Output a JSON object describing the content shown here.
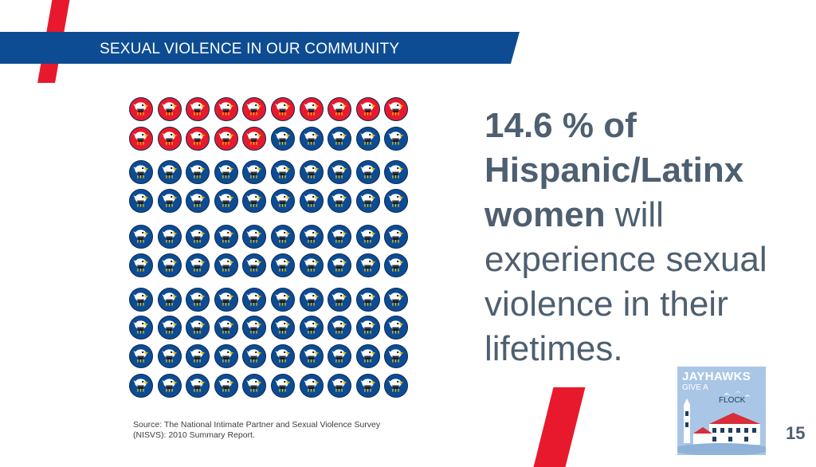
{
  "banner": {
    "title": "SEXUAL VIOLENCE IN OUR COMMUNITY"
  },
  "icon_array": {
    "rows": 10,
    "columns": 10,
    "total": 100,
    "highlighted_count": 15,
    "highlight_color": "#e8192c",
    "base_color": "#0d4c93",
    "icon": "jayhawk-mascot-icon"
  },
  "statement": {
    "bold_text": "14.6 % of Hispanic/Latinx women",
    "regular_text": " will experience sexual violence in their lifetimes."
  },
  "source": {
    "line1": "Source: The National Intimate Partner and Sexual Violence Survey",
    "line2": "(NISVS): 2010 Summary Report."
  },
  "logo": {
    "line1": "JAYHAWKS",
    "line2": "GIVE A",
    "line3": "FLOCK"
  },
  "page_number": "15",
  "colors": {
    "accent_red": "#e8192c",
    "banner_blue": "#0d4c93",
    "text_gray": "#4d5f70",
    "logo_background": "#a9c6e6"
  }
}
